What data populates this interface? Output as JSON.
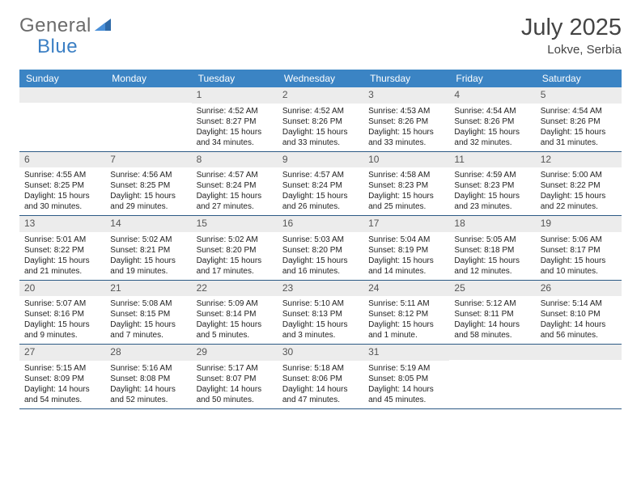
{
  "brand": {
    "part1": "General",
    "part2": "Blue"
  },
  "title": "July 2025",
  "location": "Lokve, Serbia",
  "colors": {
    "header_bg": "#3b84c4",
    "row_border": "#2c5a85",
    "daybar_bg": "#ececec",
    "text": "#222222",
    "logo_gray": "#6b6b6b",
    "logo_blue": "#3b7fc4"
  },
  "typography": {
    "title_fontsize": 29,
    "location_fontsize": 15,
    "weekday_fontsize": 12,
    "daynum_fontsize": 12,
    "body_fontsize": 10
  },
  "layout": {
    "columns": 7,
    "rows": 5
  },
  "weekdays": [
    "Sunday",
    "Monday",
    "Tuesday",
    "Wednesday",
    "Thursday",
    "Friday",
    "Saturday"
  ],
  "weeks": [
    [
      {
        "day": null
      },
      {
        "day": null
      },
      {
        "day": "1",
        "sunrise": "Sunrise: 4:52 AM",
        "sunset": "Sunset: 8:27 PM",
        "daylight": "Daylight: 15 hours and 34 minutes."
      },
      {
        "day": "2",
        "sunrise": "Sunrise: 4:52 AM",
        "sunset": "Sunset: 8:26 PM",
        "daylight": "Daylight: 15 hours and 33 minutes."
      },
      {
        "day": "3",
        "sunrise": "Sunrise: 4:53 AM",
        "sunset": "Sunset: 8:26 PM",
        "daylight": "Daylight: 15 hours and 33 minutes."
      },
      {
        "day": "4",
        "sunrise": "Sunrise: 4:54 AM",
        "sunset": "Sunset: 8:26 PM",
        "daylight": "Daylight: 15 hours and 32 minutes."
      },
      {
        "day": "5",
        "sunrise": "Sunrise: 4:54 AM",
        "sunset": "Sunset: 8:26 PM",
        "daylight": "Daylight: 15 hours and 31 minutes."
      }
    ],
    [
      {
        "day": "6",
        "sunrise": "Sunrise: 4:55 AM",
        "sunset": "Sunset: 8:25 PM",
        "daylight": "Daylight: 15 hours and 30 minutes."
      },
      {
        "day": "7",
        "sunrise": "Sunrise: 4:56 AM",
        "sunset": "Sunset: 8:25 PM",
        "daylight": "Daylight: 15 hours and 29 minutes."
      },
      {
        "day": "8",
        "sunrise": "Sunrise: 4:57 AM",
        "sunset": "Sunset: 8:24 PM",
        "daylight": "Daylight: 15 hours and 27 minutes."
      },
      {
        "day": "9",
        "sunrise": "Sunrise: 4:57 AM",
        "sunset": "Sunset: 8:24 PM",
        "daylight": "Daylight: 15 hours and 26 minutes."
      },
      {
        "day": "10",
        "sunrise": "Sunrise: 4:58 AM",
        "sunset": "Sunset: 8:23 PM",
        "daylight": "Daylight: 15 hours and 25 minutes."
      },
      {
        "day": "11",
        "sunrise": "Sunrise: 4:59 AM",
        "sunset": "Sunset: 8:23 PM",
        "daylight": "Daylight: 15 hours and 23 minutes."
      },
      {
        "day": "12",
        "sunrise": "Sunrise: 5:00 AM",
        "sunset": "Sunset: 8:22 PM",
        "daylight": "Daylight: 15 hours and 22 minutes."
      }
    ],
    [
      {
        "day": "13",
        "sunrise": "Sunrise: 5:01 AM",
        "sunset": "Sunset: 8:22 PM",
        "daylight": "Daylight: 15 hours and 21 minutes."
      },
      {
        "day": "14",
        "sunrise": "Sunrise: 5:02 AM",
        "sunset": "Sunset: 8:21 PM",
        "daylight": "Daylight: 15 hours and 19 minutes."
      },
      {
        "day": "15",
        "sunrise": "Sunrise: 5:02 AM",
        "sunset": "Sunset: 8:20 PM",
        "daylight": "Daylight: 15 hours and 17 minutes."
      },
      {
        "day": "16",
        "sunrise": "Sunrise: 5:03 AM",
        "sunset": "Sunset: 8:20 PM",
        "daylight": "Daylight: 15 hours and 16 minutes."
      },
      {
        "day": "17",
        "sunrise": "Sunrise: 5:04 AM",
        "sunset": "Sunset: 8:19 PM",
        "daylight": "Daylight: 15 hours and 14 minutes."
      },
      {
        "day": "18",
        "sunrise": "Sunrise: 5:05 AM",
        "sunset": "Sunset: 8:18 PM",
        "daylight": "Daylight: 15 hours and 12 minutes."
      },
      {
        "day": "19",
        "sunrise": "Sunrise: 5:06 AM",
        "sunset": "Sunset: 8:17 PM",
        "daylight": "Daylight: 15 hours and 10 minutes."
      }
    ],
    [
      {
        "day": "20",
        "sunrise": "Sunrise: 5:07 AM",
        "sunset": "Sunset: 8:16 PM",
        "daylight": "Daylight: 15 hours and 9 minutes."
      },
      {
        "day": "21",
        "sunrise": "Sunrise: 5:08 AM",
        "sunset": "Sunset: 8:15 PM",
        "daylight": "Daylight: 15 hours and 7 minutes."
      },
      {
        "day": "22",
        "sunrise": "Sunrise: 5:09 AM",
        "sunset": "Sunset: 8:14 PM",
        "daylight": "Daylight: 15 hours and 5 minutes."
      },
      {
        "day": "23",
        "sunrise": "Sunrise: 5:10 AM",
        "sunset": "Sunset: 8:13 PM",
        "daylight": "Daylight: 15 hours and 3 minutes."
      },
      {
        "day": "24",
        "sunrise": "Sunrise: 5:11 AM",
        "sunset": "Sunset: 8:12 PM",
        "daylight": "Daylight: 15 hours and 1 minute."
      },
      {
        "day": "25",
        "sunrise": "Sunrise: 5:12 AM",
        "sunset": "Sunset: 8:11 PM",
        "daylight": "Daylight: 14 hours and 58 minutes."
      },
      {
        "day": "26",
        "sunrise": "Sunrise: 5:14 AM",
        "sunset": "Sunset: 8:10 PM",
        "daylight": "Daylight: 14 hours and 56 minutes."
      }
    ],
    [
      {
        "day": "27",
        "sunrise": "Sunrise: 5:15 AM",
        "sunset": "Sunset: 8:09 PM",
        "daylight": "Daylight: 14 hours and 54 minutes."
      },
      {
        "day": "28",
        "sunrise": "Sunrise: 5:16 AM",
        "sunset": "Sunset: 8:08 PM",
        "daylight": "Daylight: 14 hours and 52 minutes."
      },
      {
        "day": "29",
        "sunrise": "Sunrise: 5:17 AM",
        "sunset": "Sunset: 8:07 PM",
        "daylight": "Daylight: 14 hours and 50 minutes."
      },
      {
        "day": "30",
        "sunrise": "Sunrise: 5:18 AM",
        "sunset": "Sunset: 8:06 PM",
        "daylight": "Daylight: 14 hours and 47 minutes."
      },
      {
        "day": "31",
        "sunrise": "Sunrise: 5:19 AM",
        "sunset": "Sunset: 8:05 PM",
        "daylight": "Daylight: 14 hours and 45 minutes."
      },
      {
        "day": null
      },
      {
        "day": null
      }
    ]
  ]
}
